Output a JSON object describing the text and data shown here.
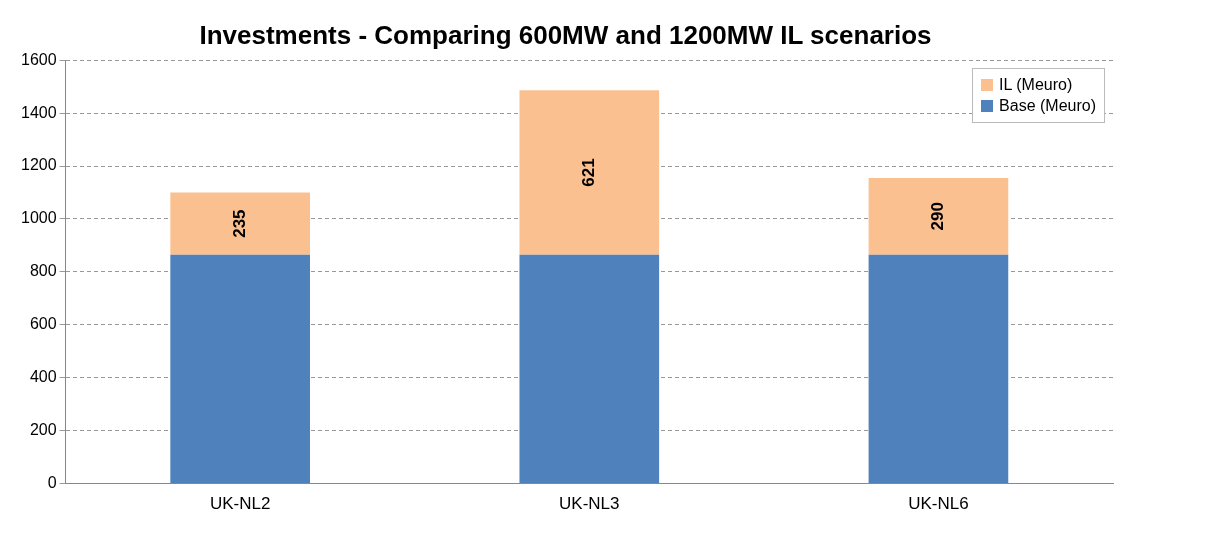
{
  "chart_data": {
    "type": "bar",
    "title": "Investments - Comparing 600MW and 1200MW IL scenarios",
    "categories": [
      "UK-NL2",
      "UK-NL3",
      "UK-NL6"
    ],
    "stacked": true,
    "series": [
      {
        "name": "Base (Meuro)",
        "color": "#4f81bd",
        "values": [
          865,
          865,
          865
        ]
      },
      {
        "name": "IL (Meuro)",
        "color": "#fac090",
        "values": [
          235,
          621,
          290
        ],
        "value_labels": [
          "235",
          "621",
          "290"
        ]
      }
    ],
    "ylim": [
      0,
      1600
    ],
    "yticks": [
      0,
      200,
      400,
      600,
      800,
      1000,
      1200,
      1400,
      1600
    ],
    "grid": "y",
    "legend": "top right"
  }
}
